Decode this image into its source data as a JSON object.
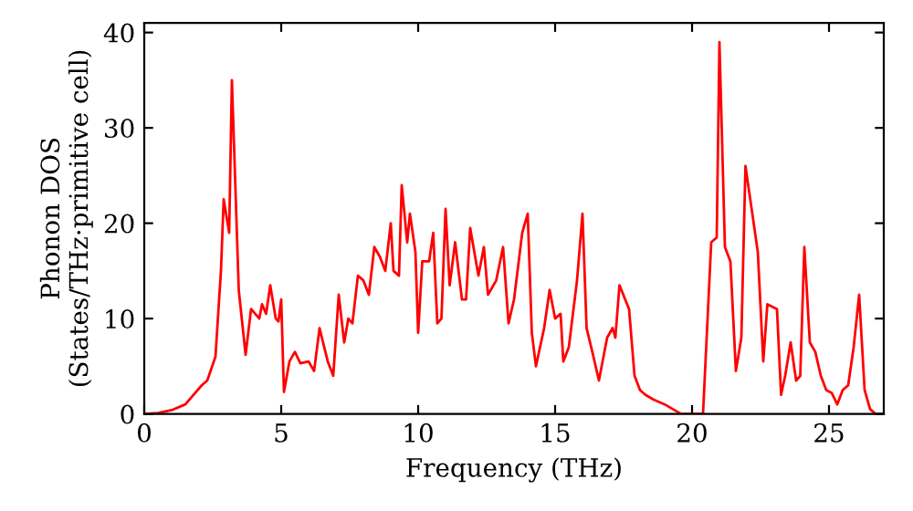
{
  "chart_data": {
    "type": "line",
    "xlabel": "Frequency (THz)",
    "ylabel": "Phonon DOS\n(States/THz·primitive cell)",
    "xlim": [
      0,
      27
    ],
    "ylim": [
      0,
      41
    ],
    "xticks": [
      0,
      5,
      10,
      15,
      20,
      25
    ],
    "yticks": [
      0,
      10,
      20,
      30,
      40
    ],
    "grid": false,
    "marker": "none",
    "line_style": "solid",
    "series": [
      {
        "color": "#ff0000",
        "x": [
          0,
          0.5,
          1,
          1.5,
          1.8,
          2.1,
          2.3,
          2.6,
          2.8,
          2.9,
          3.1,
          3.2,
          3.45,
          3.7,
          3.9,
          4.2,
          4.3,
          4.45,
          4.6,
          4.8,
          4.9,
          5.0,
          5.1,
          5.3,
          5.5,
          5.7,
          6.0,
          6.2,
          6.4,
          6.7,
          6.9,
          7.1,
          7.3,
          7.45,
          7.6,
          7.8,
          8.0,
          8.2,
          8.4,
          8.6,
          8.8,
          9.0,
          9.1,
          9.3,
          9.4,
          9.6,
          9.7,
          9.9,
          10.0,
          10.15,
          10.4,
          10.55,
          10.7,
          10.85,
          11.0,
          11.15,
          11.35,
          11.6,
          11.75,
          11.9,
          12.2,
          12.4,
          12.55,
          12.85,
          13.1,
          13.3,
          13.5,
          13.8,
          14.0,
          14.15,
          14.3,
          14.6,
          14.8,
          15.0,
          15.2,
          15.3,
          15.5,
          15.8,
          16.0,
          16.15,
          16.4,
          16.6,
          16.9,
          17.1,
          17.2,
          17.35,
          17.7,
          17.9,
          18.1,
          18.3,
          18.6,
          19.0,
          19.3,
          19.6,
          20.4,
          20.7,
          20.9,
          21.0,
          21.2,
          21.4,
          21.6,
          21.8,
          21.95,
          22.2,
          22.4,
          22.6,
          22.75,
          23.1,
          23.25,
          23.4,
          23.6,
          23.8,
          23.95,
          24.1,
          24.3,
          24.5,
          24.7,
          24.9,
          25.1,
          25.3,
          25.5,
          25.7,
          25.9,
          26.1,
          26.3,
          26.5,
          26.7,
          27
        ],
        "values": [
          0,
          0.1,
          0.4,
          1.0,
          2,
          3,
          3.5,
          6,
          15,
          22.5,
          19,
          35,
          13,
          6.2,
          11,
          10,
          11.5,
          10.5,
          13.5,
          10,
          9.7,
          12,
          2.3,
          5.5,
          6.5,
          5.3,
          5.5,
          4.5,
          9,
          5.5,
          4,
          12.5,
          7.5,
          10,
          9.5,
          14.5,
          14,
          12.5,
          17.5,
          16.5,
          15,
          20,
          15,
          14.5,
          24,
          18,
          21,
          17,
          8.5,
          16,
          16,
          19,
          9.5,
          10,
          21.5,
          13.5,
          18,
          12,
          12,
          19.5,
          14.5,
          17.5,
          12.5,
          14,
          17.5,
          9.5,
          12,
          19,
          21,
          8.5,
          5,
          9,
          13,
          10,
          10.5,
          5.5,
          7,
          14,
          21,
          9,
          6,
          3.5,
          8,
          9,
          8,
          13.5,
          11,
          4,
          2.5,
          2,
          1.5,
          1,
          0.5,
          0,
          0,
          18,
          18.5,
          39,
          17.5,
          16,
          4.5,
          8,
          26,
          21,
          17,
          5.5,
          11.5,
          11,
          2,
          4,
          7.5,
          3.5,
          4,
          17.5,
          7.5,
          6.5,
          4,
          2.5,
          2.2,
          1,
          2.5,
          3,
          7,
          12.5,
          2.5,
          0.5,
          0,
          0
        ]
      }
    ]
  }
}
